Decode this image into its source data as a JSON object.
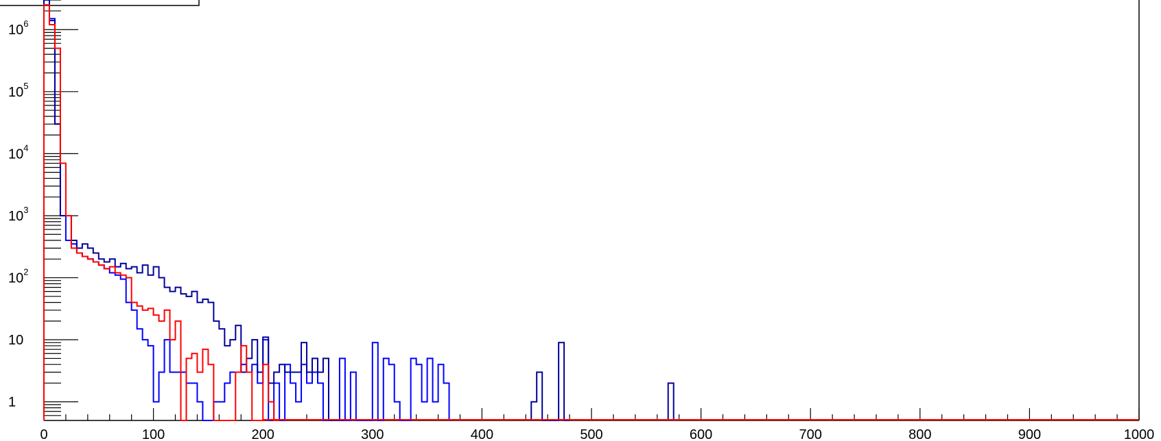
{
  "chart_data": {
    "type": "histogram",
    "x_axis": {
      "range": [
        0,
        1000
      ],
      "tick_labels": [
        "0",
        "100",
        "200",
        "300",
        "400",
        "500",
        "600",
        "700",
        "800",
        "900",
        "1000"
      ]
    },
    "y_axis": {
      "scale": "log",
      "range": [
        0.5,
        3000000
      ],
      "tick_labels": [
        {
          "value": 1,
          "base": "1",
          "exp": ""
        },
        {
          "value": 10,
          "base": "10",
          "exp": ""
        },
        {
          "value": 100,
          "base": "10",
          "exp": "2"
        },
        {
          "value": 1000,
          "base": "10",
          "exp": "3"
        },
        {
          "value": 10000,
          "base": "10",
          "exp": "4"
        },
        {
          "value": 100000,
          "base": "10",
          "exp": "5"
        },
        {
          "value": 1000000,
          "base": "10",
          "exp": "6"
        }
      ]
    },
    "bin_width": 5,
    "series": [
      {
        "color": "#0000ff",
        "bins": [
          [
            0,
            3000000
          ],
          [
            5,
            1500000
          ],
          [
            10,
            30000
          ],
          [
            15,
            1000
          ],
          [
            20,
            400
          ],
          [
            25,
            350
          ],
          [
            30,
            250
          ],
          [
            35,
            220
          ],
          [
            40,
            200
          ],
          [
            45,
            180
          ],
          [
            50,
            160
          ],
          [
            55,
            140
          ],
          [
            60,
            120
          ],
          [
            65,
            110
          ],
          [
            70,
            95
          ],
          [
            75,
            40
          ],
          [
            80,
            30
          ],
          [
            85,
            15
          ],
          [
            90,
            10
          ],
          [
            95,
            8
          ],
          [
            100,
            1
          ],
          [
            105,
            3
          ],
          [
            110,
            10
          ],
          [
            115,
            3
          ],
          [
            120,
            3
          ],
          [
            125,
            3
          ],
          [
            130,
            2
          ],
          [
            135,
            2
          ],
          [
            140,
            1
          ],
          [
            145,
            0
          ],
          [
            150,
            0
          ],
          [
            155,
            1
          ],
          [
            160,
            1
          ],
          [
            165,
            2
          ],
          [
            170,
            3
          ],
          [
            175,
            3
          ],
          [
            180,
            4
          ],
          [
            185,
            3
          ],
          [
            190,
            4
          ],
          [
            195,
            2
          ],
          [
            200,
            10
          ],
          [
            205,
            0
          ],
          [
            210,
            2
          ],
          [
            215,
            0
          ],
          [
            220,
            4
          ],
          [
            225,
            2
          ],
          [
            230,
            1
          ],
          [
            235,
            4
          ],
          [
            240,
            2
          ],
          [
            245,
            3
          ],
          [
            250,
            2
          ],
          [
            255,
            0
          ],
          [
            260,
            0
          ],
          [
            265,
            0
          ],
          [
            270,
            5
          ],
          [
            275,
            0
          ],
          [
            280,
            3
          ],
          [
            285,
            0
          ],
          [
            290,
            0
          ],
          [
            295,
            0
          ],
          [
            300,
            9
          ],
          [
            305,
            0
          ],
          [
            310,
            5
          ],
          [
            315,
            4
          ],
          [
            320,
            1
          ],
          [
            325,
            0
          ],
          [
            330,
            0
          ],
          [
            335,
            5
          ],
          [
            340,
            4
          ],
          [
            345,
            1
          ],
          [
            350,
            5
          ],
          [
            355,
            1
          ],
          [
            360,
            4
          ],
          [
            365,
            2
          ]
        ]
      },
      {
        "color": "#000099",
        "bins": [
          [
            0,
            3000000
          ],
          [
            5,
            1400000
          ],
          [
            10,
            30000
          ],
          [
            15,
            1000
          ],
          [
            20,
            1000
          ],
          [
            25,
            400
          ],
          [
            30,
            300
          ],
          [
            35,
            350
          ],
          [
            40,
            300
          ],
          [
            45,
            250
          ],
          [
            50,
            200
          ],
          [
            55,
            180
          ],
          [
            60,
            200
          ],
          [
            65,
            150
          ],
          [
            70,
            170
          ],
          [
            75,
            140
          ],
          [
            80,
            150
          ],
          [
            85,
            120
          ],
          [
            90,
            160
          ],
          [
            95,
            110
          ],
          [
            100,
            150
          ],
          [
            105,
            100
          ],
          [
            110,
            70
          ],
          [
            115,
            60
          ],
          [
            120,
            70
          ],
          [
            125,
            55
          ],
          [
            130,
            50
          ],
          [
            135,
            60
          ],
          [
            140,
            40
          ],
          [
            145,
            45
          ],
          [
            150,
            40
          ],
          [
            155,
            20
          ],
          [
            160,
            15
          ],
          [
            165,
            8
          ],
          [
            170,
            10
          ],
          [
            175,
            17
          ],
          [
            180,
            3
          ],
          [
            185,
            5
          ],
          [
            190,
            10
          ],
          [
            195,
            3
          ],
          [
            200,
            11
          ],
          [
            205,
            2
          ],
          [
            210,
            3
          ],
          [
            215,
            4
          ],
          [
            220,
            3
          ],
          [
            225,
            3
          ],
          [
            230,
            3
          ],
          [
            235,
            9
          ],
          [
            240,
            3
          ],
          [
            245,
            5
          ],
          [
            250,
            3
          ],
          [
            255,
            5
          ],
          [
            260,
            0
          ],
          [
            265,
            0
          ],
          [
            270,
            0
          ],
          [
            445,
            1
          ],
          [
            450,
            3
          ],
          [
            455,
            0
          ],
          [
            460,
            0
          ],
          [
            465,
            0
          ],
          [
            470,
            9
          ],
          [
            475,
            0
          ],
          [
            570,
            2
          ]
        ]
      },
      {
        "color": "#ff0000",
        "bins": [
          [
            0,
            2500000
          ],
          [
            5,
            1200000
          ],
          [
            10,
            500000
          ],
          [
            15,
            7000
          ],
          [
            20,
            1000
          ],
          [
            25,
            300
          ],
          [
            30,
            250
          ],
          [
            35,
            220
          ],
          [
            40,
            200
          ],
          [
            45,
            180
          ],
          [
            50,
            160
          ],
          [
            55,
            140
          ],
          [
            60,
            150
          ],
          [
            65,
            120
          ],
          [
            70,
            110
          ],
          [
            75,
            100
          ],
          [
            80,
            40
          ],
          [
            85,
            35
          ],
          [
            90,
            30
          ],
          [
            95,
            32
          ],
          [
            100,
            25
          ],
          [
            105,
            20
          ],
          [
            110,
            30
          ],
          [
            115,
            10
          ],
          [
            120,
            20
          ],
          [
            125,
            0
          ],
          [
            130,
            5
          ],
          [
            135,
            6
          ],
          [
            140,
            3
          ],
          [
            145,
            7
          ],
          [
            150,
            4
          ],
          [
            155,
            0
          ],
          [
            160,
            0
          ],
          [
            165,
            0
          ],
          [
            170,
            0
          ],
          [
            175,
            3
          ],
          [
            180,
            8
          ],
          [
            185,
            3
          ],
          [
            190,
            0
          ],
          [
            195,
            0
          ],
          [
            200,
            4
          ],
          [
            205,
            1
          ],
          [
            210,
            0
          ]
        ]
      }
    ]
  }
}
